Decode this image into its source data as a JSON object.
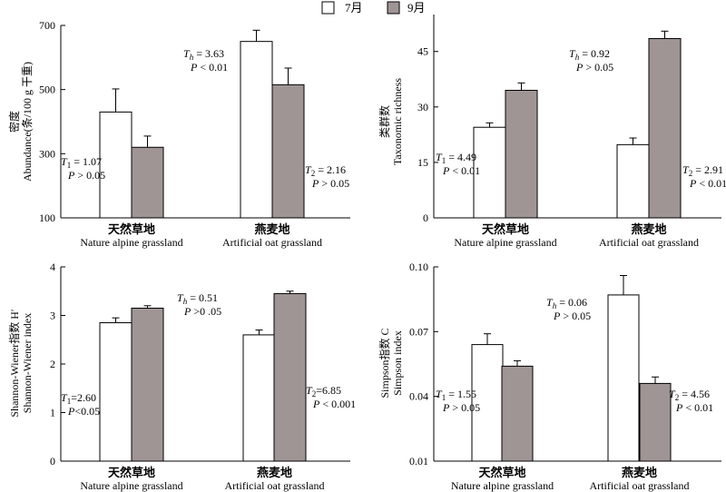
{
  "legend": {
    "items": [
      {
        "label": "7月",
        "color": "#ffffff"
      },
      {
        "label": "9月",
        "color": "#a09595"
      }
    ]
  },
  "chart_data": [
    {
      "type": "bar",
      "ylabel_cn": "密度",
      "ylabel_en": "Abundance(条/100 g 干重)",
      "ylim": [
        100,
        700
      ],
      "yticks": [
        100,
        300,
        500,
        700
      ],
      "categories": [
        {
          "cn": "天然草地",
          "en": "Nature alpine grassland"
        },
        {
          "cn": "燕麦地",
          "en": "Artificial oat grassland"
        }
      ],
      "series": [
        {
          "name": "7月",
          "values": [
            430,
            650
          ],
          "errors": [
            72,
            35
          ]
        },
        {
          "name": "9月",
          "values": [
            320,
            515
          ],
          "errors": [
            35,
            52
          ]
        }
      ],
      "annotations": [
        {
          "sym": "T",
          "sub": "1",
          "val": " = 1.07",
          "p": "P > 0.05"
        },
        {
          "sym": "T",
          "sub": "h",
          "val": " = 3.63",
          "p": "P < 0.01"
        },
        {
          "sym": "T",
          "sub": "2",
          "val": " = 2.16",
          "p": "P > 0.05"
        }
      ]
    },
    {
      "type": "bar",
      "ylabel_cn": "类群数",
      "ylabel_en": "Taxonomic richness",
      "ylim": [
        0,
        55
      ],
      "yticks": [
        0,
        15,
        30,
        45
      ],
      "categories": [
        {
          "cn": "天然草地",
          "en": "Nature alpine grassland"
        },
        {
          "cn": "燕麦地",
          "en": "Artificial oat grassland"
        }
      ],
      "series": [
        {
          "name": "7月",
          "values": [
            24.5,
            19.8
          ],
          "errors": [
            1.2,
            1.8
          ]
        },
        {
          "name": "9月",
          "values": [
            34.5,
            48.5
          ],
          "errors": [
            2,
            2
          ]
        }
      ],
      "annotations": [
        {
          "sym": "T",
          "sub": "1",
          "val": " = 4.49",
          "p": "P < 0.01"
        },
        {
          "sym": "T",
          "sub": "h",
          "val": " = 0.92",
          "p": "P > 0.05"
        },
        {
          "sym": "T",
          "sub": "2",
          "val": " = 2.91",
          "p": "P < 0.01"
        }
      ]
    },
    {
      "type": "bar",
      "ylabel_cn": "Shannon-Wiener指数 H′",
      "ylabel_en": "Shannon-Wiener index",
      "ylim": [
        0,
        4
      ],
      "yticks": [
        0,
        1,
        2,
        3,
        4
      ],
      "categories": [
        {
          "cn": "天然草地",
          "en": "Nature alpine grassland"
        },
        {
          "cn": "燕麦地",
          "en": "Artificial oat grassland"
        }
      ],
      "series": [
        {
          "name": "7月",
          "values": [
            2.85,
            2.6
          ],
          "errors": [
            0.1,
            0.1
          ]
        },
        {
          "name": "9月",
          "values": [
            3.15,
            3.45
          ],
          "errors": [
            0.05,
            0.05
          ]
        }
      ],
      "annotations": [
        {
          "sym": "T",
          "sub": "1",
          "val": "=2.60",
          "p": "P<0.05"
        },
        {
          "sym": "T",
          "sub": "h",
          "val": " = 0.51",
          "p": "P >0 .05"
        },
        {
          "sym": "T",
          "sub": "2",
          "val": "=6.85",
          "p": "P < 0.001"
        }
      ]
    },
    {
      "type": "bar",
      "ylabel_cn": "Simpson指数 C",
      "ylabel_en": "Simpson index",
      "ylim": [
        0.01,
        0.1
      ],
      "yticks": [
        0.01,
        0.04,
        0.07,
        0.1
      ],
      "yticklabels": [
        "0.01",
        "0.04",
        "0.07",
        "0.10"
      ],
      "categories": [
        {
          "cn": "天然草地",
          "en": "Nature alpine grassland"
        },
        {
          "cn": "燕麦地",
          "en": "Artificial oat grassland"
        }
      ],
      "series": [
        {
          "name": "7月",
          "values": [
            0.064,
            0.087
          ],
          "errors": [
            0.005,
            0.009
          ]
        },
        {
          "name": "9月",
          "values": [
            0.054,
            0.046
          ],
          "errors": [
            0.0025,
            0.003
          ]
        }
      ],
      "annotations": [
        {
          "sym": "T",
          "sub": "1",
          "val": " = 1.55",
          "p": "P > 0.05"
        },
        {
          "sym": "T",
          "sub": "h",
          "val": " = 0.06",
          "p": "P > 0.05"
        },
        {
          "sym": "T",
          "sub": "2",
          "val": " = 4.56",
          "p": "P < 0.01"
        }
      ]
    }
  ]
}
